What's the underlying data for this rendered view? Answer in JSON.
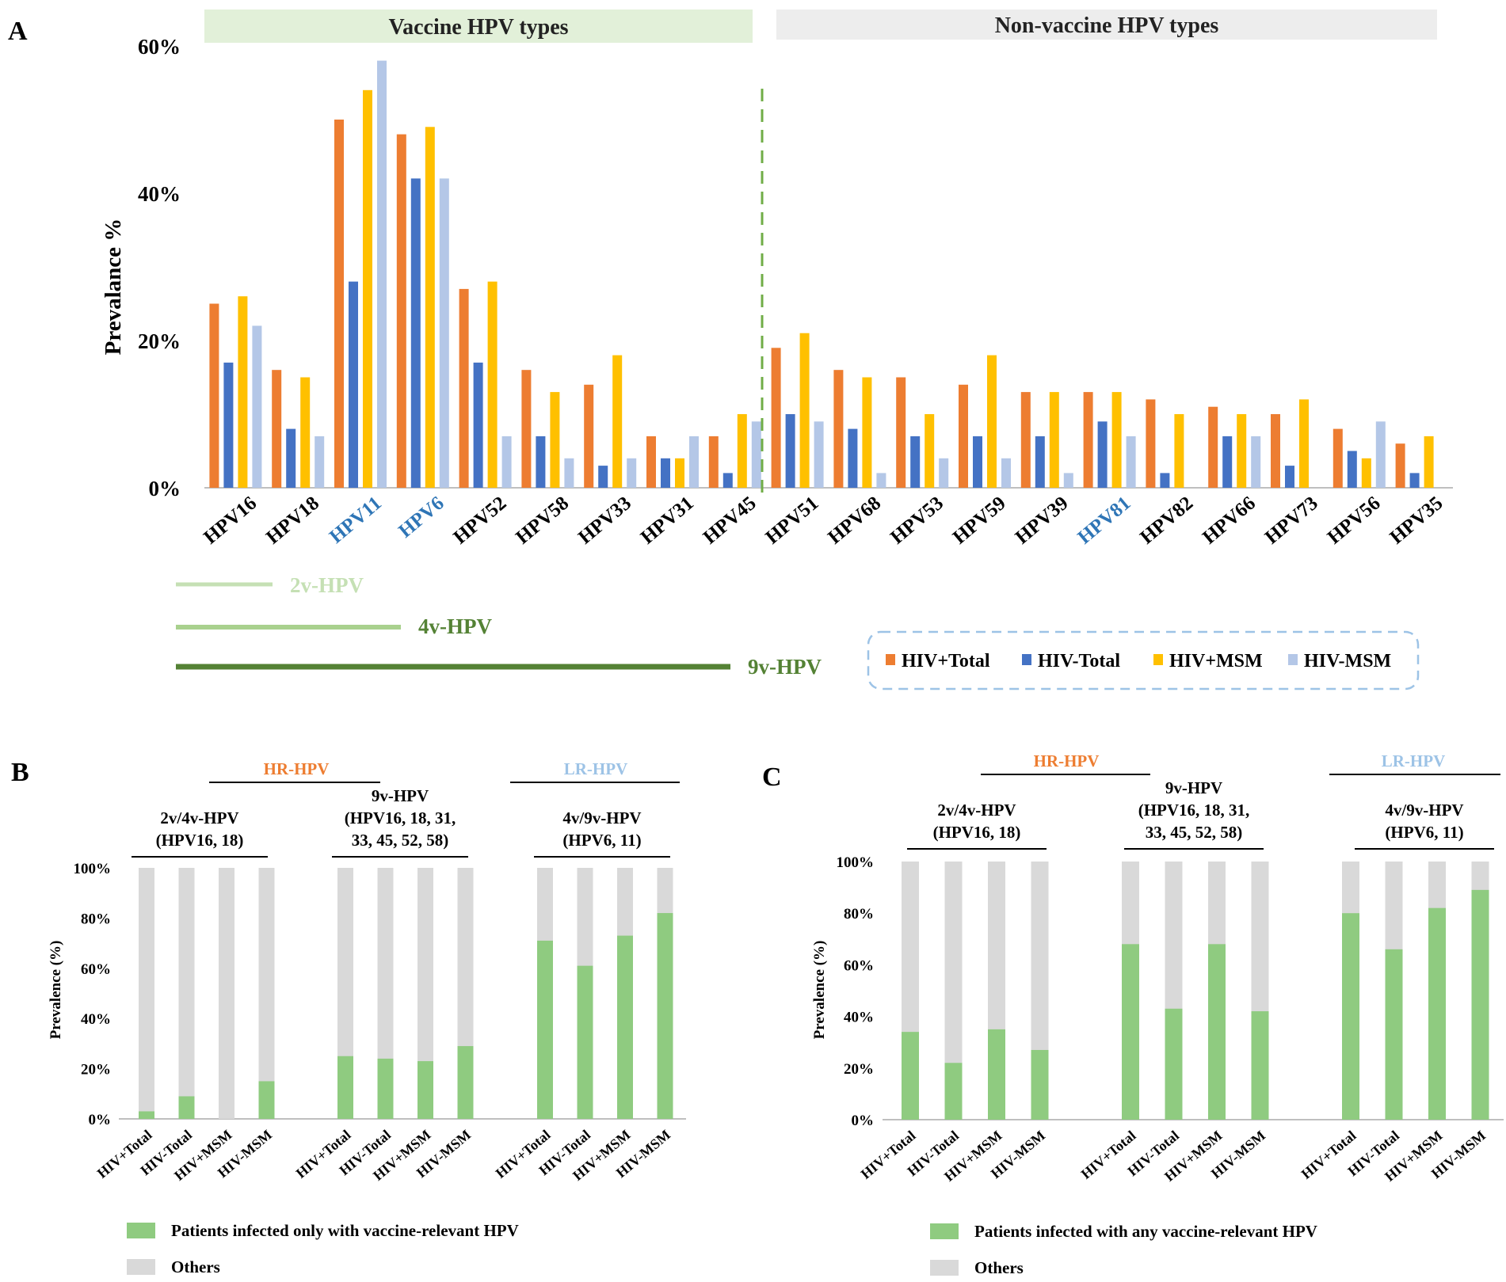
{
  "colors": {
    "hiv_pos_total": "#ED7D31",
    "hiv_neg_total": "#4472C4",
    "hiv_pos_msm": "#FFC000",
    "hiv_neg_msm": "#B4C7E7",
    "vaccine_green": "#8FCB80",
    "others_gray": "#D9D9D9",
    "hr_orange": "#ED7D31",
    "lr_blue": "#9DC3E6",
    "highlight_blue": "#2E75B6",
    "vaccine_band": "#E2F0D9",
    "nonvaccine_band": "#EDEDED",
    "line_2v": "#C5E0B4",
    "line_4v": "#A9D18E",
    "line_9v": "#548235"
  },
  "panel_labels": {
    "a": "A",
    "b": "B",
    "c": "C"
  },
  "chart_data": [
    {
      "id": "A",
      "type": "bar",
      "ylabel": "Prevalance %",
      "ylim": [
        0,
        60
      ],
      "yticks": [
        "0%",
        "20%",
        "40%",
        "60%"
      ],
      "band_vaccine": "Vaccine HPV types",
      "band_nonvaccine": "Non-vaccine HPV types",
      "categories": [
        "HPV16",
        "HPV18",
        "HPV11",
        "HPV6",
        "HPV52",
        "HPV58",
        "HPV33",
        "HPV31",
        "HPV45",
        "HPV51",
        "HPV68",
        "HPV53",
        "HPV59",
        "HPV39",
        "HPV81",
        "HPV82",
        "HPV66",
        "HPV73",
        "HPV56",
        "HPV35"
      ],
      "highlighted_categories": [
        "HPV11",
        "HPV6",
        "HPV81"
      ],
      "series": [
        {
          "name": "HIV+Total",
          "values": [
            25,
            16,
            50,
            48,
            27,
            16,
            14,
            7,
            7,
            19,
            16,
            15,
            14,
            13,
            13,
            12,
            11,
            10,
            8,
            6
          ]
        },
        {
          "name": "HIV-Total",
          "values": [
            17,
            8,
            28,
            42,
            17,
            7,
            3,
            4,
            2,
            10,
            8,
            7,
            7,
            7,
            9,
            2,
            7,
            3,
            5,
            2
          ]
        },
        {
          "name": "HIV+MSM",
          "values": [
            26,
            15,
            54,
            49,
            28,
            13,
            18,
            4,
            10,
            21,
            15,
            10,
            18,
            13,
            13,
            10,
            10,
            12,
            4,
            7
          ]
        },
        {
          "name": "HIV-MSM",
          "values": [
            22,
            7,
            58,
            42,
            7,
            4,
            4,
            7,
            9,
            9,
            2,
            4,
            4,
            2,
            7,
            0,
            7,
            0,
            9,
            0
          ]
        }
      ],
      "vaccine_lines": [
        "2v-HPV",
        "4v-HPV",
        "9v-HPV"
      ]
    },
    {
      "id": "B",
      "type": "bar",
      "stacked": true,
      "ylabel": "Prevalence (%)",
      "ylim": [
        0,
        100
      ],
      "yticks": [
        "0%",
        "20%",
        "40%",
        "60%",
        "80%",
        "100%"
      ],
      "hr_label": "HR-HPV",
      "lr_label": "LR-HPV",
      "groups": [
        {
          "label": [
            "2v/4v-HPV",
            "(HPV16, 18)"
          ],
          "categories": [
            "HIV+Total",
            "HIV-Total",
            "HIV+MSM",
            "HIV-MSM"
          ],
          "values": [
            3,
            9,
            0,
            15
          ]
        },
        {
          "label": [
            "9v-HPV",
            "(HPV16, 18, 31,",
            "33, 45, 52, 58)"
          ],
          "categories": [
            "HIV+Total",
            "HIV-Total",
            "HIV+MSM",
            "HIV-MSM"
          ],
          "values": [
            25,
            24,
            23,
            29
          ]
        },
        {
          "label": [
            "4v/9v-HPV",
            "(HPV6, 11)"
          ],
          "categories": [
            "HIV+Total",
            "HIV-Total",
            "HIV+MSM",
            "HIV-MSM"
          ],
          "values": [
            71,
            61,
            73,
            82
          ]
        }
      ],
      "legend": [
        "Patients infected only with vaccine-relevant HPV",
        "Others"
      ]
    },
    {
      "id": "C",
      "type": "bar",
      "stacked": true,
      "ylabel": "Prevalence (%)",
      "ylim": [
        0,
        100
      ],
      "yticks": [
        "0%",
        "20%",
        "40%",
        "60%",
        "80%",
        "100%"
      ],
      "hr_label": "HR-HPV",
      "lr_label": "LR-HPV",
      "groups": [
        {
          "label": [
            "2v/4v-HPV",
            "(HPV16, 18)"
          ],
          "categories": [
            "HIV+Total",
            "HIV-Total",
            "HIV+MSM",
            "HIV-MSM"
          ],
          "values": [
            34,
            22,
            35,
            27
          ]
        },
        {
          "label": [
            "9v-HPV",
            "(HPV16, 18, 31,",
            "33, 45, 52, 58)"
          ],
          "categories": [
            "HIV+Total",
            "HIV-Total",
            "HIV+MSM",
            "HIV-MSM"
          ],
          "values": [
            68,
            43,
            68,
            42
          ]
        },
        {
          "label": [
            "4v/9v-HPV",
            "(HPV6, 11)"
          ],
          "categories": [
            "HIV+Total",
            "HIV-Total",
            "HIV+MSM",
            "HIV-MSM"
          ],
          "values": [
            80,
            66,
            82,
            89
          ]
        }
      ],
      "legend": [
        "Patients infected with any vaccine-relevant HPV",
        "Others"
      ]
    }
  ]
}
